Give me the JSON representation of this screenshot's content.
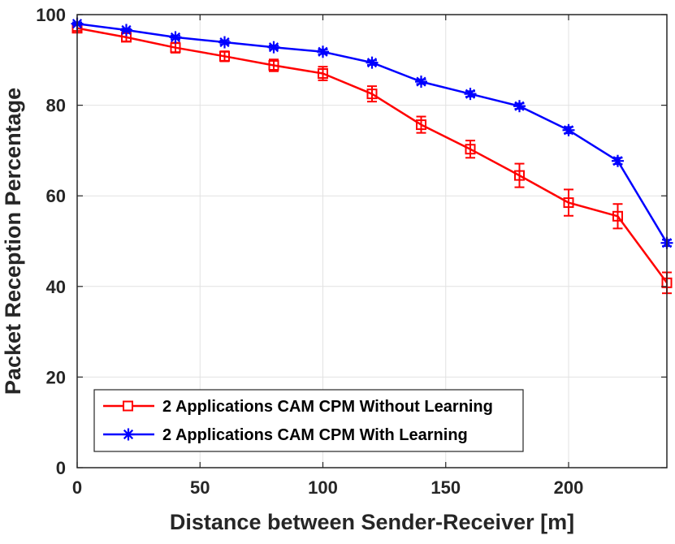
{
  "chart_data": {
    "type": "line",
    "title": "",
    "xlabel": "Distance between Sender-Receiver [m]",
    "ylabel": "Packet Reception Percentage",
    "xlim": [
      0,
      240
    ],
    "ylim": [
      0,
      100
    ],
    "xticks": [
      0,
      50,
      100,
      150,
      200
    ],
    "yticks": [
      0,
      20,
      40,
      60,
      80,
      100
    ],
    "xtick_labels": [
      "0",
      "50",
      "100",
      "150",
      "200"
    ],
    "ytick_labels": [
      "0",
      "20",
      "40",
      "60",
      "80",
      "100"
    ],
    "grid": true,
    "legend_position": "bottom-left",
    "x": [
      0,
      20,
      40,
      60,
      80,
      100,
      120,
      140,
      160,
      180,
      200,
      220,
      240
    ],
    "series": [
      {
        "name": "2 Applications CAM CPM Without Learning",
        "color": "#ff0000",
        "marker": "square",
        "values": [
          97.0,
          95.0,
          92.7,
          90.8,
          88.8,
          87.0,
          82.5,
          75.7,
          70.3,
          64.5,
          58.5,
          55.5,
          40.8
        ],
        "errors": [
          0.6,
          0.9,
          1.1,
          1.1,
          1.3,
          1.5,
          1.7,
          1.8,
          1.9,
          2.6,
          2.9,
          2.7,
          2.3
        ]
      },
      {
        "name": "2 Applications CAM CPM With Learning",
        "color": "#0000ff",
        "marker": "asterisk",
        "values": [
          98.0,
          96.6,
          95.0,
          93.9,
          92.8,
          91.8,
          89.4,
          85.2,
          82.5,
          79.8,
          74.5,
          67.7,
          49.6
        ],
        "errors": [
          0.3,
          0.3,
          0.4,
          0.4,
          0.4,
          0.5,
          0.5,
          0.5,
          0.6,
          0.6,
          0.7,
          0.7,
          0.7
        ]
      }
    ]
  }
}
